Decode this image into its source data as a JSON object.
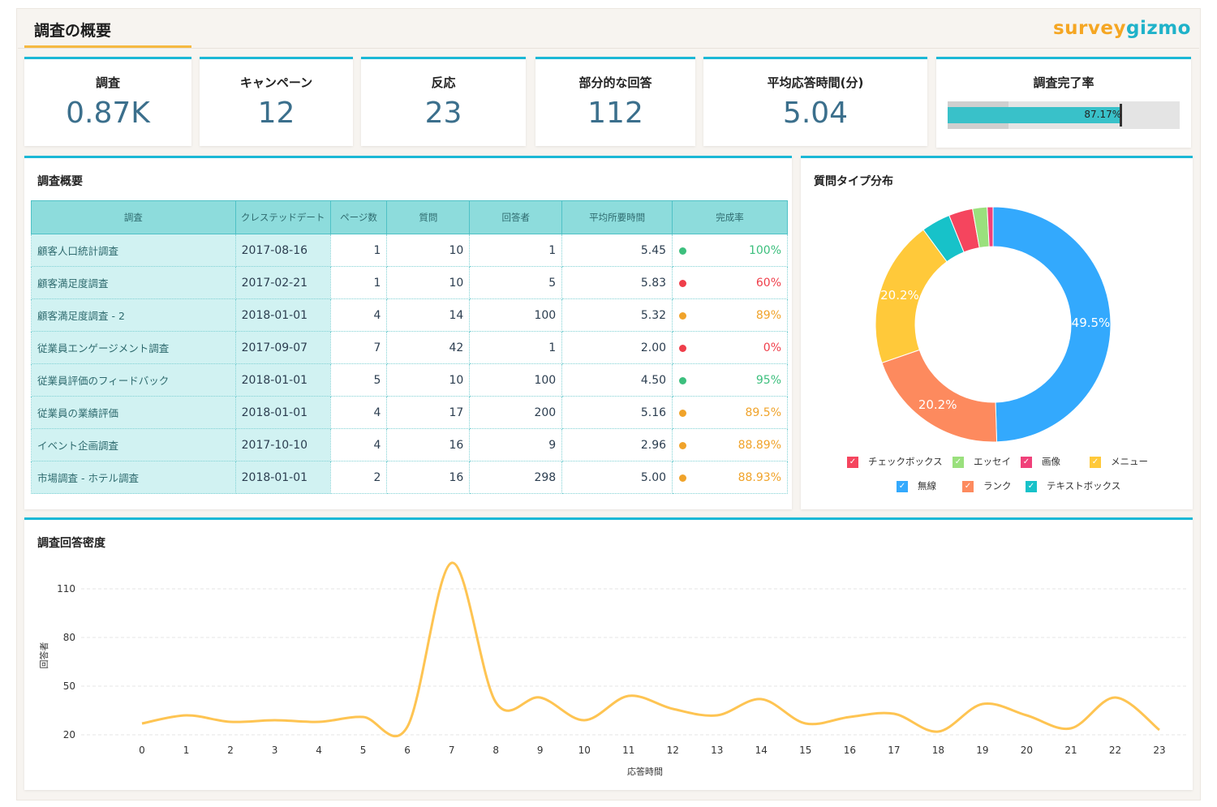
{
  "header": {
    "title": "調査の概要",
    "logo_part1": "survey",
    "logo_part2": "gizmo"
  },
  "kpis": [
    {
      "label": "調査",
      "value": "0.87K"
    },
    {
      "label": "キャンペーン",
      "value": "12"
    },
    {
      "label": "反応",
      "value": "23"
    },
    {
      "label": "部分的な回答",
      "value": "112"
    },
    {
      "label": "平均応答時間(分)",
      "value": "5.04"
    }
  ],
  "completion": {
    "label": "調査完了率",
    "value_label": "87.17%",
    "fill_fraction": 0.8717,
    "target_fraction": 0.74
  },
  "overview": {
    "title": "調査概要",
    "columns": [
      "調査",
      "クレステッドデート",
      "ページ数",
      "質問",
      "回答者",
      "平均所要時間",
      "完成率"
    ],
    "rows": [
      {
        "name": "顧客人口統計調査",
        "date": "2017-08-16",
        "pages": "1",
        "questions": "10",
        "respondents": "1",
        "avg_time": "5.45",
        "rate": "100%",
        "status": "green"
      },
      {
        "name": "顧客満足度調査",
        "date": "2017-02-21",
        "pages": "1",
        "questions": "10",
        "respondents": "5",
        "avg_time": "5.83",
        "rate": "60%",
        "status": "red"
      },
      {
        "name": "顧客満足度調査 - 2",
        "date": "2018-01-01",
        "pages": "4",
        "questions": "14",
        "respondents": "100",
        "avg_time": "5.32",
        "rate": "89%",
        "status": "orange"
      },
      {
        "name": "従業員エンゲージメント調査",
        "date": "2017-09-07",
        "pages": "7",
        "questions": "42",
        "respondents": "1",
        "avg_time": "2.00",
        "rate": "0%",
        "status": "red"
      },
      {
        "name": "従業員評価のフィードバック",
        "date": "2018-01-01",
        "pages": "5",
        "questions": "10",
        "respondents": "100",
        "avg_time": "4.50",
        "rate": "95%",
        "status": "green"
      },
      {
        "name": "従業員の業績評価",
        "date": "2018-01-01",
        "pages": "4",
        "questions": "17",
        "respondents": "200",
        "avg_time": "5.16",
        "rate": "89.5%",
        "status": "orange"
      },
      {
        "name": "イベント企画調査",
        "date": "2017-10-10",
        "pages": "4",
        "questions": "16",
        "respondents": "9",
        "avg_time": "2.96",
        "rate": "88.89%",
        "status": "orange"
      },
      {
        "name": "市場調査 - ホテル調査",
        "date": "2018-01-01",
        "pages": "2",
        "questions": "16",
        "respondents": "298",
        "avg_time": "5.00",
        "rate": "88.93%",
        "status": "orange"
      }
    ]
  },
  "status_colors": {
    "green": "#3cbf7d",
    "red": "#ef3e4a",
    "orange": "#f0a32a"
  },
  "donut": {
    "title": "質問タイプ分布",
    "chart_data": {
      "type": "pie",
      "slices": [
        {
          "name": "無線",
          "value": 49.5,
          "label": "49.5%",
          "color": "#33a9fd"
        },
        {
          "name": "ランク",
          "value": 20.2,
          "label": "20.2%",
          "color": "#fd8a5e"
        },
        {
          "name": "メニュー",
          "value": 20.2,
          "label": "20.2%",
          "color": "#ffc93a"
        },
        {
          "name": "テキストボックス",
          "value": 4.0,
          "label": "",
          "color": "#17c2c9"
        },
        {
          "name": "チェックボックス",
          "value": 3.3,
          "label": "",
          "color": "#f5455e"
        },
        {
          "name": "エッセイ",
          "value": 2.0,
          "label": "",
          "color": "#9ae07d"
        },
        {
          "name": "画像",
          "value": 0.8,
          "label": "",
          "color": "#f0417a"
        }
      ]
    },
    "legend": [
      {
        "name": "チェックボックス",
        "color": "#f5455e"
      },
      {
        "name": "エッセイ",
        "color": "#9ae07d"
      },
      {
        "name": "画像",
        "color": "#f0417a"
      },
      {
        "name": "メニュー",
        "color": "#ffc93a"
      },
      {
        "name": "無線",
        "color": "#33a9fd"
      },
      {
        "name": "ランク",
        "color": "#fd8a5e"
      },
      {
        "name": "テキストボックス",
        "color": "#17c2c9"
      }
    ],
    "check": "✓"
  },
  "density": {
    "title": "調査回答密度",
    "chart_data": {
      "type": "line",
      "x": [
        0,
        1,
        2,
        3,
        4,
        5,
        6,
        7,
        8,
        9,
        10,
        11,
        12,
        13,
        14,
        15,
        16,
        17,
        18,
        19,
        20,
        21,
        22,
        23
      ],
      "y": [
        27,
        32,
        28,
        29,
        28,
        31,
        25,
        126,
        40,
        43,
        29,
        44,
        36,
        32,
        42,
        27,
        31,
        33,
        22,
        39,
        32,
        24,
        43,
        23
      ],
      "xlabel": "応答時間",
      "ylabel": "回答者",
      "yticks": [
        20,
        50,
        80,
        110
      ],
      "ylim": [
        20,
        125
      ],
      "color": "#fec452"
    }
  }
}
